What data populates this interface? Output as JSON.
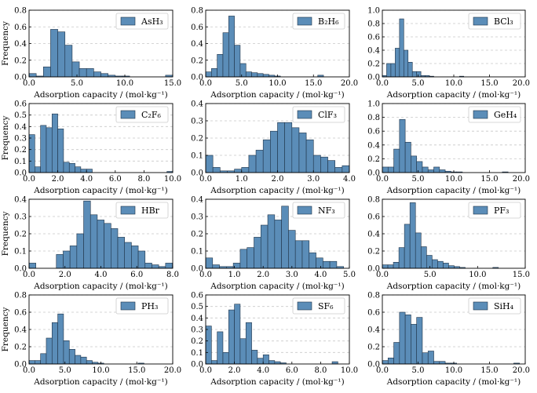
{
  "figure": {
    "colors": {
      "bar_fill": "#5b8db8",
      "bar_edge": "#1f3348",
      "grid": "#c8c8c8",
      "axis": "#000000"
    }
  },
  "chart_data": [
    {
      "type": "bar",
      "legend": "AsH₃",
      "legend_position": "top-right",
      "grid": "y-dashed",
      "xlabel": "Adsorption capacity / (mol·kg⁻¹)",
      "ylabel": "Frequency",
      "xlim": [
        0,
        15
      ],
      "ylim": [
        0,
        0.8
      ],
      "xticks": [
        0,
        5,
        10,
        15
      ],
      "xtick_labels": [
        "0.0",
        "5.0",
        "10.0",
        "15.0"
      ],
      "yticks": [
        0,
        0.2,
        0.4,
        0.6,
        0.8
      ],
      "ytick_labels": [
        "0.0",
        "0.2",
        "0.4",
        "0.6",
        "0.8"
      ],
      "bin_edges": [
        0,
        0.75,
        1.5,
        2.25,
        3.0,
        3.75,
        4.5,
        5.25,
        6.0,
        6.75,
        7.5,
        8.25,
        9.0,
        9.75,
        10.5,
        14.25,
        15.0
      ],
      "values": [
        0.04,
        0.01,
        0.12,
        0.57,
        0.54,
        0.38,
        0.18,
        0.1,
        0.1,
        0.06,
        0.04,
        0.02,
        0.01,
        0.01,
        0.0,
        0.02
      ]
    },
    {
      "type": "bar",
      "legend": "B₂H₆",
      "legend_position": "top-right",
      "grid": "y-dashed",
      "xlabel": "Adsorption capacity / (mol·kg⁻¹)",
      "ylabel": "",
      "xlim": [
        0,
        20
      ],
      "ylim": [
        0,
        0.8
      ],
      "xticks": [
        0,
        5,
        10,
        15,
        20
      ],
      "xtick_labels": [
        "0.0",
        "5.0",
        "10.0",
        "15.0",
        "20.0"
      ],
      "yticks": [
        0,
        0.2,
        0.4,
        0.6,
        0.8
      ],
      "ytick_labels": [
        "0.0",
        "0.2",
        "0.4",
        "0.6",
        "0.8"
      ],
      "bin_edges": [
        0,
        0.8,
        1.6,
        2.4,
        3.2,
        4.0,
        4.8,
        5.6,
        6.4,
        7.2,
        8.0,
        8.8,
        9.6,
        10.4,
        15.6,
        16.4
      ],
      "values": [
        0.06,
        0.1,
        0.27,
        0.53,
        0.73,
        0.38,
        0.16,
        0.06,
        0.05,
        0.04,
        0.03,
        0.02,
        0.01,
        0.0,
        0.02
      ]
    },
    {
      "type": "bar",
      "legend": "BCl₃",
      "legend_position": "top-right",
      "grid": "y-dashed",
      "xlabel": "Adsorption capacity / (mol·kg⁻¹)",
      "ylabel": "",
      "xlim": [
        0,
        20
      ],
      "ylim": [
        0,
        1.0
      ],
      "xticks": [
        0,
        5,
        10,
        15,
        20
      ],
      "xtick_labels": [
        "0.0",
        "5.0",
        "10.0",
        "15.0",
        "20.0"
      ],
      "yticks": [
        0,
        0.2,
        0.4,
        0.6,
        0.8,
        1.0
      ],
      "ytick_labels": [
        "0.0",
        "0.2",
        "0.4",
        "0.6",
        "0.8",
        "1.0"
      ],
      "bin_edges": [
        0,
        0.6,
        1.2,
        1.8,
        2.4,
        3.0,
        3.6,
        4.2,
        4.8,
        5.4,
        6.0,
        6.6,
        7.2,
        10.8,
        11.4
      ],
      "values": [
        0.02,
        0.2,
        0.2,
        0.43,
        0.87,
        0.4,
        0.22,
        0.08,
        0.08,
        0.02,
        0.02,
        0.01,
        0.0,
        0.01
      ]
    },
    {
      "type": "bar",
      "legend": "C₂F₆",
      "legend_position": "top-right",
      "grid": "y-dashed",
      "xlabel": "Adsorption capacity / (mol·kg⁻¹)",
      "ylabel": "Frequency",
      "xlim": [
        0,
        10
      ],
      "ylim": [
        0,
        0.6
      ],
      "xticks": [
        0,
        2,
        4,
        6,
        8,
        10
      ],
      "xtick_labels": [
        "0.0",
        "2.0",
        "4.0",
        "6.0",
        "8.0",
        "10.0"
      ],
      "yticks": [
        0,
        0.1,
        0.2,
        0.3,
        0.4,
        0.5,
        0.6
      ],
      "ytick_labels": [
        "0.0",
        "0.1",
        "0.2",
        "0.3",
        "0.4",
        "0.5",
        "0.6"
      ],
      "bin_edges": [
        0,
        0.4,
        0.8,
        1.2,
        1.6,
        2.0,
        2.4,
        2.8,
        3.2,
        3.6,
        4.0,
        4.4,
        4.8,
        9.6,
        10.0
      ],
      "values": [
        0.33,
        0.05,
        0.41,
        0.39,
        0.51,
        0.38,
        0.09,
        0.08,
        0.05,
        0.03,
        0.03,
        0.0,
        0.0,
        0.01
      ]
    },
    {
      "type": "bar",
      "legend": "ClF₃",
      "legend_position": "top-right",
      "grid": "y-dashed",
      "xlabel": "Adsorption capacity / (mol·kg⁻¹)",
      "ylabel": "",
      "xlim": [
        0,
        4
      ],
      "ylim": [
        0,
        0.4
      ],
      "xticks": [
        0,
        1,
        2,
        3,
        4
      ],
      "xtick_labels": [
        "0.0",
        "1.0",
        "2.0",
        "3.0",
        "4.0"
      ],
      "yticks": [
        0,
        0.1,
        0.2,
        0.3,
        0.4
      ],
      "ytick_labels": [
        "0.0",
        "0.1",
        "0.2",
        "0.3",
        "0.4"
      ],
      "bin_edges": [
        0,
        0.2,
        0.4,
        0.6,
        0.8,
        1.0,
        1.2,
        1.4,
        1.6,
        1.8,
        2.0,
        2.2,
        2.4,
        2.6,
        2.8,
        3.0,
        3.2,
        3.4,
        3.6,
        3.8,
        4.0
      ],
      "values": [
        0.1,
        0.03,
        0.01,
        0.01,
        0.02,
        0.03,
        0.1,
        0.13,
        0.19,
        0.24,
        0.29,
        0.29,
        0.26,
        0.23,
        0.19,
        0.1,
        0.09,
        0.07,
        0.03,
        0.04
      ]
    },
    {
      "type": "bar",
      "legend": "GeH₄",
      "legend_position": "top-right",
      "grid": "y-dashed",
      "xlabel": "Adsorption capacity / (mol·kg⁻¹)",
      "ylabel": "",
      "xlim": [
        0,
        20
      ],
      "ylim": [
        0,
        1.0
      ],
      "xticks": [
        0,
        5,
        10,
        15,
        20
      ],
      "xtick_labels": [
        "0.0",
        "5.0",
        "10.0",
        "15.0",
        "20.0"
      ],
      "yticks": [
        0,
        0.2,
        0.4,
        0.6,
        0.8,
        1.0
      ],
      "ytick_labels": [
        "0.0",
        "0.2",
        "0.4",
        "0.6",
        "0.8",
        "1.0"
      ],
      "bin_edges": [
        0,
        0.8,
        1.6,
        2.4,
        3.2,
        4.0,
        4.8,
        5.6,
        6.4,
        7.2,
        8.0,
        8.8,
        9.6,
        10.4,
        11.2,
        16.8,
        17.6
      ],
      "values": [
        0.08,
        0.08,
        0.34,
        0.77,
        0.44,
        0.24,
        0.16,
        0.08,
        0.04,
        0.08,
        0.04,
        0.02,
        0.01,
        0.01,
        0.0,
        0.01
      ]
    },
    {
      "type": "bar",
      "legend": "HBr",
      "legend_position": "top-right",
      "grid": "y-dashed",
      "xlabel": "Adsorption capacity / (mol·kg⁻¹)",
      "ylabel": "Frequency",
      "xlim": [
        0,
        8
      ],
      "ylim": [
        0,
        0.4
      ],
      "xticks": [
        0,
        2,
        4,
        6,
        8
      ],
      "xtick_labels": [
        "0.0",
        "2.0",
        "4.0",
        "6.0",
        "8.0"
      ],
      "yticks": [
        0,
        0.1,
        0.2,
        0.3,
        0.4
      ],
      "ytick_labels": [
        "0.0",
        "0.1",
        "0.2",
        "0.3",
        "0.4"
      ],
      "bin_edges": [
        0,
        0.38,
        1.52,
        1.9,
        2.28,
        2.66,
        3.04,
        3.42,
        3.8,
        4.18,
        4.56,
        4.94,
        5.32,
        5.7,
        6.08,
        6.46,
        6.84,
        7.22,
        7.6,
        7.98
      ],
      "values": [
        0.03,
        0.0,
        0.08,
        0.1,
        0.13,
        0.2,
        0.39,
        0.31,
        0.28,
        0.26,
        0.23,
        0.18,
        0.15,
        0.13,
        0.1,
        0.03,
        0.02,
        0.01,
        0.03
      ]
    },
    {
      "type": "bar",
      "legend": "NF₃",
      "legend_position": "top-right",
      "grid": "y-dashed",
      "xlabel": "Adsorption capacity / (mol·kg⁻¹)",
      "ylabel": "",
      "xlim": [
        0,
        5
      ],
      "ylim": [
        0,
        0.4
      ],
      "xticks": [
        0,
        1,
        2,
        3,
        4,
        5
      ],
      "xtick_labels": [
        "0.0",
        "1.0",
        "2.0",
        "3.0",
        "4.0",
        "5.0"
      ],
      "yticks": [
        0,
        0.1,
        0.2,
        0.3,
        0.4
      ],
      "ytick_labels": [
        "0.0",
        "0.1",
        "0.2",
        "0.3",
        "0.4"
      ],
      "bin_edges": [
        0,
        0.24,
        0.48,
        0.72,
        0.96,
        1.2,
        1.44,
        1.68,
        1.92,
        2.16,
        2.4,
        2.64,
        2.88,
        3.12,
        3.36,
        3.6,
        3.84,
        4.08,
        4.32,
        4.56,
        4.8
      ],
      "values": [
        0.06,
        0.02,
        0.01,
        0.01,
        0.03,
        0.11,
        0.12,
        0.18,
        0.25,
        0.31,
        0.28,
        0.36,
        0.22,
        0.16,
        0.16,
        0.09,
        0.06,
        0.04,
        0.04,
        0.01
      ]
    },
    {
      "type": "bar",
      "legend": "PF₃",
      "legend_position": "top-right",
      "grid": "y-dashed",
      "xlabel": "Adsorption capacity / (mol·kg⁻¹)",
      "ylabel": "",
      "xlim": [
        0,
        15
      ],
      "ylim": [
        0,
        0.8
      ],
      "xticks": [
        0,
        5,
        10,
        15
      ],
      "xtick_labels": [
        "0.0",
        "5.0",
        "10.0",
        "15.0"
      ],
      "yticks": [
        0,
        0.2,
        0.4,
        0.6,
        0.8
      ],
      "ytick_labels": [
        "0.0",
        "0.2",
        "0.4",
        "0.6",
        "0.8"
      ],
      "bin_edges": [
        0,
        0.58,
        1.16,
        1.74,
        2.32,
        2.9,
        3.48,
        4.06,
        4.64,
        5.22,
        5.8,
        6.38,
        6.96,
        7.54,
        8.12,
        8.7,
        11.6,
        12.18
      ],
      "values": [
        0.04,
        0.04,
        0.07,
        0.24,
        0.51,
        0.76,
        0.41,
        0.25,
        0.15,
        0.1,
        0.08,
        0.06,
        0.03,
        0.02,
        0.01,
        0.0,
        0.01
      ]
    },
    {
      "type": "bar",
      "legend": "PH₃",
      "legend_position": "top-right",
      "grid": "y-dashed",
      "xlabel": "Adsorption capacity / (mol·kg⁻¹)",
      "ylabel": "Frequency",
      "xlim": [
        0,
        20
      ],
      "ylim": [
        0,
        0.8
      ],
      "xticks": [
        0,
        5,
        10,
        15,
        20
      ],
      "xtick_labels": [
        "0.0",
        "5.0",
        "10.0",
        "15.0",
        "20.0"
      ],
      "yticks": [
        0,
        0.2,
        0.4,
        0.6,
        0.8
      ],
      "ytick_labels": [
        "0.0",
        "0.2",
        "0.4",
        "0.6",
        "0.8"
      ],
      "bin_edges": [
        0,
        0.8,
        1.6,
        2.4,
        3.2,
        4.0,
        4.8,
        5.6,
        6.4,
        7.2,
        8.0,
        8.8,
        9.6,
        10.4,
        15.2,
        16.0
      ],
      "values": [
        0.04,
        0.04,
        0.12,
        0.3,
        0.48,
        0.58,
        0.27,
        0.17,
        0.1,
        0.08,
        0.04,
        0.02,
        0.01,
        0.0,
        0.01
      ]
    },
    {
      "type": "bar",
      "legend": "SF₆",
      "legend_position": "top-right",
      "grid": "y-dashed",
      "xlabel": "Adsorption capacity / (mol·kg⁻¹)",
      "ylabel": "",
      "xlim": [
        0,
        10
      ],
      "ylim": [
        0,
        0.6
      ],
      "xticks": [
        0,
        2,
        4,
        6,
        8,
        10
      ],
      "xtick_labels": [
        "0.0",
        "2.0",
        "4.0",
        "6.0",
        "8.0",
        "10.0"
      ],
      "yticks": [
        0,
        0.1,
        0.2,
        0.3,
        0.4,
        0.5,
        0.6
      ],
      "ytick_labels": [
        "0.0",
        "0.1",
        "0.2",
        "0.3",
        "0.4",
        "0.5",
        "0.6"
      ],
      "bin_edges": [
        0,
        0.4,
        0.8,
        1.2,
        1.6,
        2.0,
        2.4,
        2.8,
        3.2,
        3.6,
        4.0,
        4.4,
        4.8,
        5.2,
        5.6,
        8.8,
        9.2
      ],
      "values": [
        0.33,
        0.03,
        0.28,
        0.1,
        0.47,
        0.52,
        0.22,
        0.36,
        0.12,
        0.05,
        0.08,
        0.03,
        0.02,
        0.01,
        0.0,
        0.02
      ]
    },
    {
      "type": "bar",
      "legend": "SiH₄",
      "legend_position": "top-right",
      "grid": "y-dashed",
      "xlabel": "Adsorption capacity / (mol·kg⁻¹)",
      "ylabel": "",
      "xlim": [
        0,
        20
      ],
      "ylim": [
        0,
        0.8
      ],
      "xticks": [
        0,
        5,
        10,
        15,
        20
      ],
      "xtick_labels": [
        "0.0",
        "5.0",
        "10.0",
        "15.0",
        "20.0"
      ],
      "yticks": [
        0,
        0.2,
        0.4,
        0.6,
        0.8
      ],
      "ytick_labels": [
        "0.0",
        "0.2",
        "0.4",
        "0.6",
        "0.8"
      ],
      "bin_edges": [
        0,
        0.8,
        1.6,
        2.4,
        3.2,
        4.0,
        4.8,
        5.6,
        6.4,
        7.2,
        8.0,
        8.8,
        9.6,
        10.4,
        11.2,
        18.4,
        19.2
      ],
      "values": [
        0.04,
        0.07,
        0.25,
        0.6,
        0.57,
        0.46,
        0.54,
        0.13,
        0.15,
        0.03,
        0.03,
        0.01,
        0.01,
        0.0,
        0.0,
        0.01
      ]
    }
  ]
}
